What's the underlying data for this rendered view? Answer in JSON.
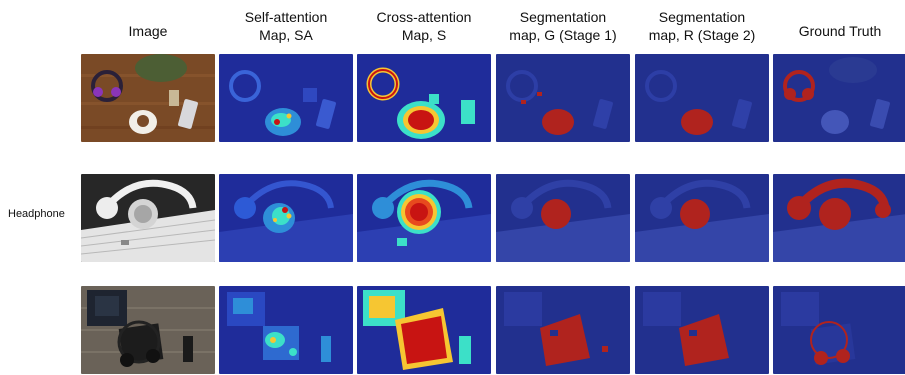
{
  "columns": [
    "Image",
    "Self-attention\nMap, SA",
    "Cross-attention\nMap, S",
    "Segmentation\nmap, G (Stage 1)",
    "Segmentation\nmap, R (Stage 2)",
    "Ground Truth"
  ],
  "row_label": "Headphone",
  "colors": {
    "map_background": "#1f2c9a",
    "heat_hot": "#c81412",
    "heat_warm": "#f6c632",
    "heat_mid": "#3ce0c8",
    "mask_red": "#b0231e"
  }
}
